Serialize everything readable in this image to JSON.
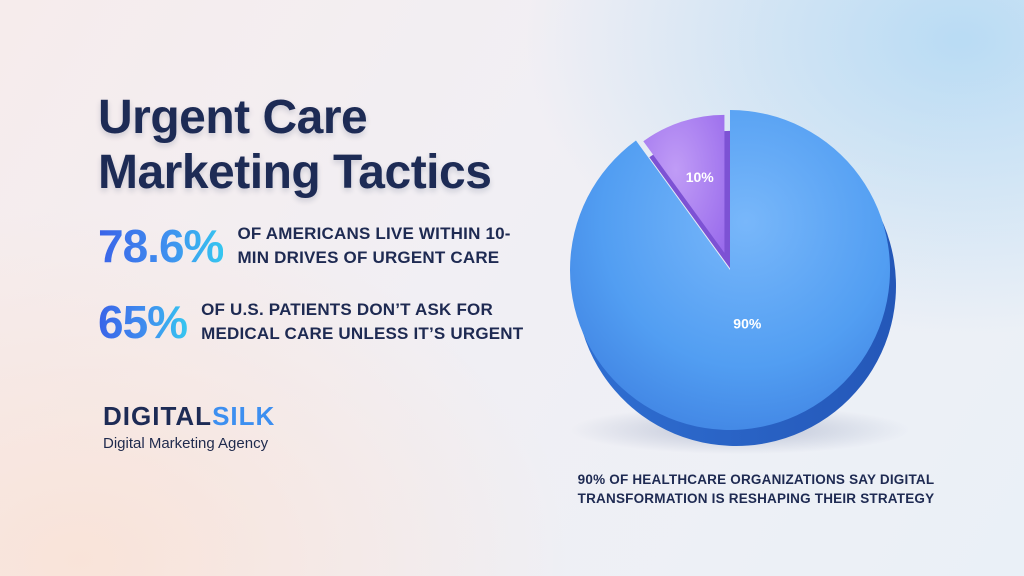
{
  "headline": {
    "line1": "Urgent Care",
    "line2": "Marketing Tactics"
  },
  "stats": [
    {
      "value": "78.6%",
      "line1": "OF AMERICANS LIVE WITHIN 10-",
      "line2": "MIN DRIVES OF URGENT CARE"
    },
    {
      "value": "65%",
      "line1": "OF U.S. PATIENTS DON’T ASK FOR",
      "line2": "MEDICAL CARE UNLESS IT’S URGENT"
    }
  ],
  "brand": {
    "name_part1": "DIGITAL",
    "name_part2": "SILK",
    "tagline": "Digital Marketing Agency"
  },
  "caption": {
    "line1": "90% OF HEALTHCARE ORGANIZATIONS SAY DIGITAL",
    "line2": "TRANSFORMATION IS RESHAPING THEIR STRATEGY"
  },
  "chart_data": {
    "type": "pie",
    "labels": [
      "10%",
      "90%"
    ],
    "values": [
      10,
      90
    ],
    "colors": [
      "#a97ef0",
      "#4f9cf2"
    ],
    "exploded_slice": "10%",
    "title": "",
    "legend": "none"
  }
}
